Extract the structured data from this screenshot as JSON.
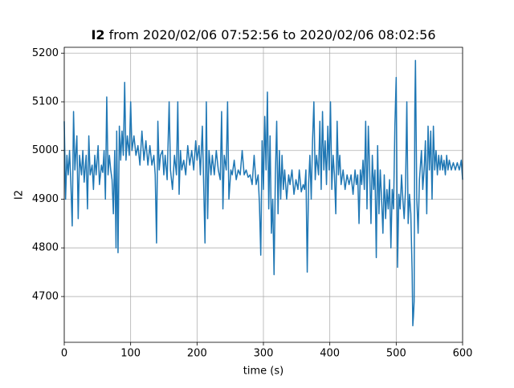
{
  "chart_data": {
    "type": "line",
    "title": {
      "bold": "I2",
      "rest": "from 2020/02/06 07:52:56 to 2020/02/06 08:02:56"
    },
    "xlabel": "time (s)",
    "ylabel": "I2",
    "color": "#1f77b4",
    "grid": true,
    "xlim": [
      0,
      600
    ],
    "xticks": [
      0,
      100,
      200,
      300,
      400,
      500,
      600
    ],
    "ylim": [
      4606,
      5212
    ],
    "yticks": [
      4700,
      4800,
      4900,
      5000,
      5100,
      5200
    ],
    "x": [
      0,
      2,
      4,
      6,
      8,
      10,
      12,
      14,
      16,
      19,
      21,
      23,
      26,
      28,
      30,
      33,
      35,
      37,
      39,
      42,
      44,
      46,
      48,
      51,
      53,
      56,
      58,
      60,
      62,
      64,
      66,
      68,
      70,
      72,
      74,
      76,
      78,
      79,
      81,
      83,
      85,
      87,
      89,
      91,
      93,
      95,
      98,
      100,
      102,
      105,
      108,
      111,
      114,
      117,
      120,
      123,
      126,
      129,
      132,
      135,
      137,
      139,
      141,
      143,
      145,
      148,
      150,
      152,
      155,
      158,
      160,
      163,
      166,
      169,
      171,
      173,
      175,
      177,
      180,
      183,
      186,
      189,
      192,
      195,
      198,
      200,
      203,
      205,
      208,
      210,
      212,
      214,
      216,
      218,
      221,
      223,
      226,
      229,
      232,
      235,
      237,
      239,
      241,
      244,
      246,
      248,
      251,
      253,
      256,
      259,
      262,
      265,
      268,
      271,
      274,
      277,
      280,
      283,
      286,
      289,
      292,
      294,
      296,
      298,
      300,
      302,
      304,
      306,
      308,
      310,
      312,
      314,
      316,
      318,
      320,
      322,
      324,
      326,
      328,
      330,
      332,
      335,
      338,
      340,
      343,
      346,
      349,
      352,
      354,
      357,
      360,
      362,
      364,
      366,
      368,
      370,
      372,
      374,
      376,
      378,
      380,
      383,
      385,
      387,
      389,
      391,
      393,
      395,
      397,
      399,
      401,
      403,
      405,
      407,
      409,
      411,
      413,
      415,
      417,
      420,
      423,
      426,
      429,
      432,
      435,
      438,
      440,
      442,
      444,
      446,
      448,
      450,
      452,
      454,
      456,
      458,
      460,
      462,
      464,
      466,
      468,
      470,
      472,
      474,
      476,
      478,
      480,
      482,
      484,
      486,
      488,
      490,
      492,
      494,
      496,
      498,
      500,
      502,
      504,
      506,
      508,
      510,
      512,
      514,
      516,
      518,
      520,
      522,
      524,
      525,
      526,
      527,
      528,
      529,
      531,
      533,
      535,
      538,
      540,
      542,
      544,
      546,
      548,
      550,
      552,
      554,
      556,
      558,
      560,
      562,
      564,
      566,
      568,
      570,
      572,
      574,
      576,
      578,
      580,
      583,
      586,
      589,
      592,
      595,
      598,
      600
    ],
    "values": [
      5060,
      4900,
      4990,
      4950,
      5000,
      4930,
      4845,
      5080,
      4960,
      5030,
      4860,
      4990,
      4950,
      5000,
      4935,
      4990,
      4880,
      5030,
      4950,
      4970,
      4920,
      4990,
      4950,
      5010,
      4930,
      4970,
      4955,
      5000,
      4900,
      5110,
      4950,
      4990,
      4960,
      4940,
      4870,
      5000,
      4800,
      5040,
      4790,
      5050,
      4980,
      5040,
      4990,
      5140,
      4980,
      5030,
      4990,
      5100,
      5000,
      5030,
      4990,
      5010,
      4970,
      5040,
      4980,
      5020,
      4970,
      5010,
      4970,
      4990,
      4950,
      4810,
      5060,
      4960,
      4990,
      5000,
      4950,
      4990,
      4940,
      5100,
      4960,
      4920,
      4990,
      4950,
      5100,
      4910,
      5000,
      4960,
      4980,
      4950,
      5010,
      4970,
      5000,
      4960,
      5020,
      4980,
      5010,
      4950,
      5050,
      4930,
      4810,
      5100,
      4860,
      5000,
      4950,
      4990,
      4950,
      5000,
      4960,
      4940,
      5080,
      4880,
      4990,
      4960,
      5100,
      4900,
      4960,
      4950,
      4980,
      4940,
      4960,
      4950,
      5000,
      4950,
      4960,
      4945,
      4950,
      4930,
      4990,
      4930,
      4950,
      4890,
      4785,
      5020,
      4920,
      5070,
      4960,
      5120,
      4880,
      5030,
      4830,
      4900,
      4745,
      4950,
      5060,
      4870,
      5000,
      4900,
      4990,
      4920,
      4960,
      4900,
      4950,
      4930,
      4960,
      4910,
      4940,
      4920,
      4960,
      4915,
      4930,
      4920,
      4960,
      4750,
      4930,
      4990,
      4900,
      5020,
      5100,
      4940,
      4990,
      4950,
      5060,
      4920,
      5080,
      4960,
      5020,
      4930,
      5050,
      4960,
      5100,
      4920,
      4990,
      4950,
      4870,
      5060,
      4950,
      4990,
      4930,
      4960,
      4920,
      4950,
      4930,
      4950,
      4910,
      4960,
      4930,
      4950,
      4850,
      4960,
      4930,
      4980,
      4920,
      5060,
      4880,
      5050,
      4960,
      4850,
      4990,
      4920,
      4960,
      4780,
      5010,
      4870,
      4960,
      4900,
      4830,
      4950,
      4860,
      4920,
      4880,
      4940,
      4800,
      4920,
      4880,
      5050,
      5150,
      4760,
      4910,
      4880,
      4950,
      4900,
      4860,
      4920,
      5100,
      4850,
      4910,
      4870,
      4750,
      4640,
      4660,
      4690,
      5080,
      5185,
      4900,
      4830,
      4940,
      5000,
      4920,
      4960,
      5020,
      4870,
      5050,
      4960,
      5040,
      4900,
      5050,
      4960,
      5000,
      4950,
      4990,
      4960,
      4990,
      4960,
      4980,
      4950,
      4990,
      4960,
      4980,
      4960,
      4975,
      4960,
      4975,
      4960,
      4980,
      4940
    ]
  }
}
